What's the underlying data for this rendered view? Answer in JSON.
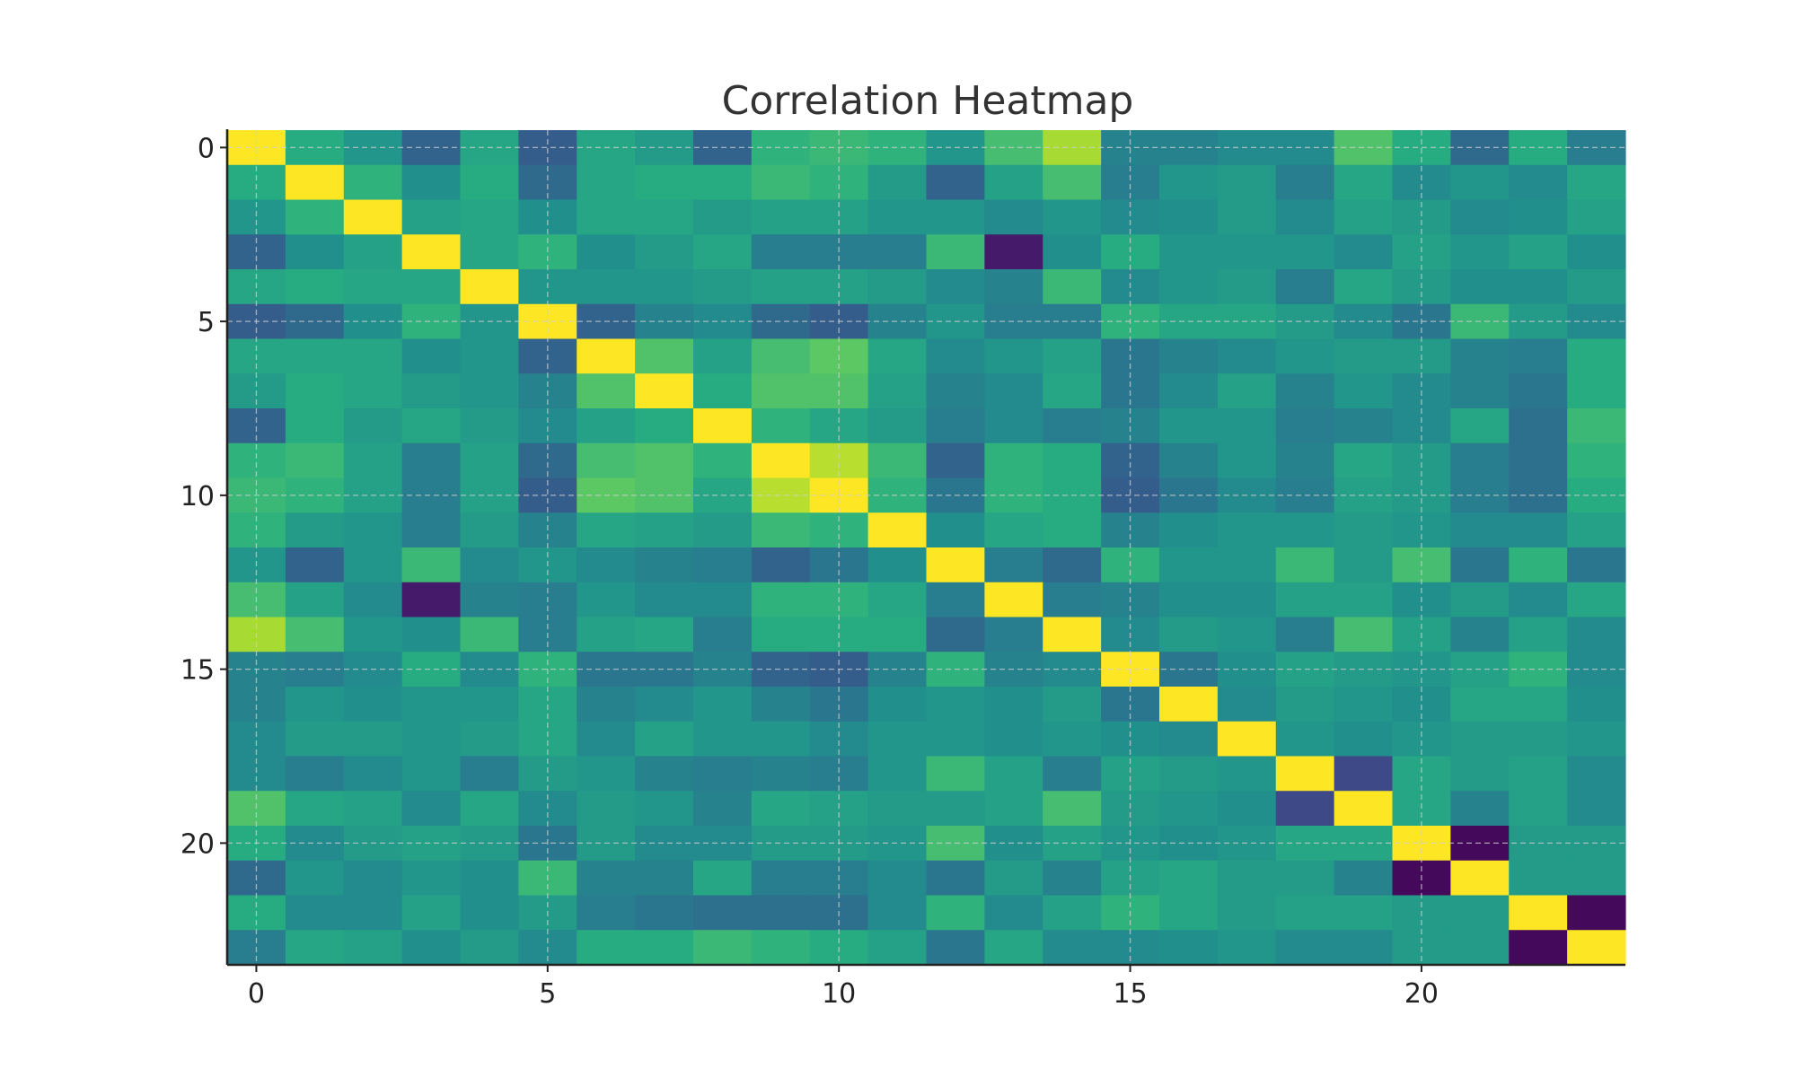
{
  "chart_data": {
    "type": "heatmap",
    "title": "Correlation Heatmap",
    "xlabel": "",
    "ylabel": "",
    "size": 24,
    "xticks": [
      0,
      5,
      10,
      15,
      20
    ],
    "yticks": [
      0,
      5,
      10,
      15,
      20
    ],
    "grid": true,
    "colormap": "viridis",
    "value_range": [
      -1,
      1
    ],
    "matrix": [
      [
        1.0,
        0.25,
        0.05,
        -0.35,
        0.2,
        -0.4,
        0.2,
        0.1,
        -0.35,
        0.3,
        0.35,
        0.3,
        0.05,
        0.4,
        0.75,
        -0.1,
        -0.1,
        -0.05,
        -0.05,
        0.45,
        0.25,
        -0.3,
        0.25,
        -0.15
      ],
      [
        0.25,
        1.0,
        0.3,
        0.0,
        0.25,
        -0.3,
        0.2,
        0.25,
        0.25,
        0.35,
        0.3,
        0.1,
        -0.35,
        0.15,
        0.4,
        -0.15,
        0.05,
        0.1,
        -0.15,
        0.2,
        -0.05,
        0.05,
        -0.05,
        0.2
      ],
      [
        0.05,
        0.3,
        1.0,
        0.15,
        0.2,
        0.0,
        0.2,
        0.2,
        0.1,
        0.15,
        0.15,
        0.05,
        0.05,
        -0.05,
        0.05,
        -0.05,
        0.0,
        0.1,
        -0.05,
        0.15,
        0.1,
        -0.05,
        0.0,
        0.15
      ],
      [
        -0.35,
        0.0,
        0.15,
        1.0,
        0.2,
        0.3,
        0.0,
        0.1,
        0.2,
        -0.15,
        -0.15,
        -0.15,
        0.35,
        -0.85,
        0.0,
        0.25,
        0.05,
        0.05,
        0.05,
        -0.05,
        0.15,
        0.05,
        0.15,
        0.0
      ],
      [
        0.2,
        0.25,
        0.2,
        0.2,
        1.0,
        0.05,
        0.05,
        0.05,
        0.1,
        0.15,
        0.15,
        0.1,
        -0.05,
        -0.1,
        0.35,
        -0.05,
        0.05,
        0.1,
        -0.15,
        0.2,
        0.1,
        0.0,
        0.0,
        0.1
      ],
      [
        -0.4,
        -0.3,
        0.0,
        0.3,
        0.05,
        1.0,
        -0.35,
        -0.1,
        -0.05,
        -0.3,
        -0.4,
        -0.1,
        0.05,
        -0.15,
        -0.15,
        0.3,
        0.2,
        0.2,
        0.1,
        -0.05,
        -0.2,
        0.35,
        0.1,
        -0.05
      ],
      [
        0.2,
        0.2,
        0.2,
        0.0,
        0.05,
        -0.35,
        1.0,
        0.45,
        0.15,
        0.4,
        0.5,
        0.2,
        -0.05,
        0.05,
        0.15,
        -0.2,
        -0.1,
        -0.05,
        0.05,
        0.1,
        0.1,
        -0.1,
        -0.15,
        0.25
      ],
      [
        0.1,
        0.25,
        0.2,
        0.1,
        0.05,
        -0.1,
        0.45,
        1.0,
        0.25,
        0.45,
        0.45,
        0.15,
        -0.1,
        -0.05,
        0.2,
        -0.2,
        -0.05,
        0.15,
        -0.1,
        0.05,
        -0.05,
        -0.1,
        -0.2,
        0.25
      ],
      [
        -0.35,
        0.25,
        0.1,
        0.2,
        0.1,
        -0.05,
        0.15,
        0.25,
        1.0,
        0.3,
        0.2,
        0.1,
        -0.15,
        -0.05,
        -0.15,
        -0.1,
        0.05,
        0.05,
        -0.15,
        -0.1,
        -0.05,
        0.2,
        -0.25,
        0.35
      ],
      [
        0.3,
        0.35,
        0.15,
        -0.15,
        0.15,
        -0.3,
        0.4,
        0.45,
        0.3,
        1.0,
        0.8,
        0.35,
        -0.35,
        0.3,
        0.25,
        -0.35,
        -0.1,
        0.05,
        -0.1,
        0.2,
        0.1,
        -0.15,
        -0.25,
        0.3
      ],
      [
        0.35,
        0.3,
        0.15,
        -0.15,
        0.15,
        -0.4,
        0.5,
        0.45,
        0.2,
        0.8,
        1.0,
        0.3,
        -0.2,
        0.3,
        0.25,
        -0.4,
        -0.2,
        -0.05,
        -0.15,
        0.15,
        0.1,
        -0.15,
        -0.25,
        0.25
      ],
      [
        0.3,
        0.1,
        0.05,
        -0.15,
        0.1,
        -0.1,
        0.2,
        0.15,
        0.1,
        0.35,
        0.3,
        1.0,
        0.0,
        0.2,
        0.25,
        -0.1,
        0.0,
        0.05,
        0.05,
        0.1,
        0.05,
        -0.05,
        -0.05,
        0.15
      ],
      [
        0.05,
        -0.35,
        0.05,
        0.35,
        -0.05,
        0.05,
        -0.05,
        -0.1,
        -0.15,
        -0.35,
        -0.2,
        0.0,
        1.0,
        -0.15,
        -0.3,
        0.3,
        0.05,
        0.05,
        0.35,
        0.1,
        0.4,
        -0.2,
        0.3,
        -0.2
      ],
      [
        0.4,
        0.15,
        -0.05,
        -0.85,
        -0.1,
        -0.15,
        0.05,
        -0.05,
        -0.05,
        0.3,
        0.3,
        0.2,
        -0.15,
        1.0,
        -0.15,
        -0.1,
        0.0,
        0.0,
        0.15,
        0.15,
        0.0,
        0.1,
        -0.05,
        0.2
      ],
      [
        0.75,
        0.4,
        0.05,
        0.0,
        0.35,
        -0.15,
        0.15,
        0.2,
        -0.15,
        0.25,
        0.25,
        0.25,
        -0.3,
        -0.15,
        1.0,
        -0.05,
        0.1,
        0.05,
        -0.15,
        0.4,
        0.15,
        -0.1,
        0.15,
        -0.05
      ],
      [
        -0.1,
        -0.15,
        -0.05,
        0.25,
        -0.05,
        0.3,
        -0.2,
        -0.2,
        -0.1,
        -0.35,
        -0.4,
        -0.1,
        0.3,
        -0.1,
        -0.05,
        1.0,
        -0.2,
        0.0,
        0.15,
        0.1,
        0.05,
        0.15,
        0.3,
        -0.05
      ],
      [
        -0.1,
        0.05,
        0.0,
        0.05,
        0.05,
        0.2,
        -0.1,
        -0.05,
        0.05,
        -0.1,
        -0.2,
        0.0,
        0.05,
        0.0,
        0.1,
        -0.2,
        1.0,
        -0.05,
        0.1,
        0.05,
        0.0,
        0.2,
        0.2,
        0.0
      ],
      [
        -0.05,
        0.1,
        0.1,
        0.05,
        0.1,
        0.2,
        -0.05,
        0.15,
        0.05,
        0.05,
        -0.05,
        0.05,
        0.05,
        0.0,
        0.05,
        0.0,
        -0.05,
        1.0,
        0.05,
        0.0,
        0.05,
        0.1,
        0.1,
        0.05
      ],
      [
        -0.05,
        -0.15,
        -0.05,
        0.05,
        -0.15,
        0.1,
        0.05,
        -0.1,
        -0.15,
        -0.1,
        -0.15,
        0.05,
        0.35,
        0.15,
        -0.15,
        0.15,
        0.1,
        0.05,
        1.0,
        -0.55,
        0.2,
        0.1,
        0.15,
        -0.05
      ],
      [
        0.45,
        0.2,
        0.15,
        -0.05,
        0.2,
        -0.05,
        0.1,
        0.05,
        -0.1,
        0.2,
        0.15,
        0.1,
        0.1,
        0.15,
        0.4,
        0.1,
        0.05,
        0.0,
        -0.55,
        1.0,
        0.2,
        -0.1,
        0.15,
        -0.05
      ],
      [
        0.25,
        -0.05,
        0.1,
        0.15,
        0.1,
        -0.2,
        0.1,
        -0.05,
        -0.05,
        0.1,
        0.1,
        0.05,
        0.4,
        0.0,
        0.15,
        0.05,
        0.0,
        0.05,
        0.2,
        0.2,
        1.0,
        -0.95,
        0.1,
        0.1
      ],
      [
        -0.3,
        0.05,
        -0.05,
        0.05,
        0.0,
        0.35,
        -0.1,
        -0.1,
        0.2,
        -0.15,
        -0.15,
        -0.05,
        -0.2,
        0.1,
        -0.1,
        0.15,
        0.2,
        0.1,
        0.1,
        -0.1,
        -0.95,
        1.0,
        0.1,
        0.1
      ],
      [
        0.25,
        -0.05,
        -0.05,
        0.15,
        0.0,
        0.1,
        -0.15,
        -0.2,
        -0.25,
        -0.25,
        -0.25,
        -0.05,
        0.3,
        -0.05,
        0.15,
        0.3,
        0.2,
        0.1,
        0.15,
        0.15,
        0.1,
        0.1,
        1.0,
        -0.95
      ],
      [
        -0.15,
        0.2,
        0.15,
        0.0,
        0.1,
        -0.05,
        0.25,
        0.25,
        0.35,
        0.3,
        0.25,
        0.15,
        -0.2,
        0.2,
        -0.05,
        -0.05,
        0.0,
        0.05,
        -0.05,
        -0.05,
        0.1,
        0.1,
        -0.95,
        1.0
      ]
    ]
  }
}
